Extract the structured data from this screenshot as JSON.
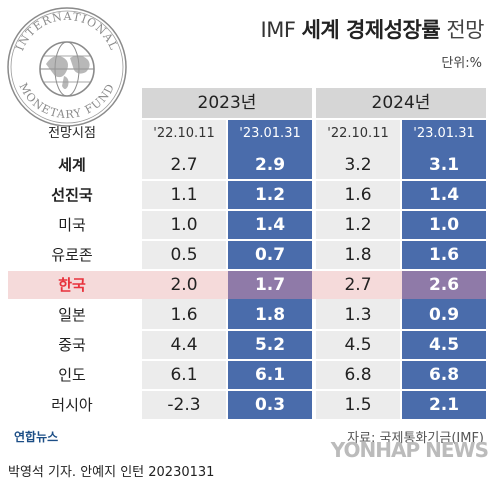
{
  "header": {
    "title_prefix": "IMF",
    "title_main": "세계 경제성장률",
    "title_suffix": "전망",
    "unit": "단위:%"
  },
  "seal": {
    "top_text": "INTERNATIONAL",
    "bottom_text": "MONETARY FUND"
  },
  "table": {
    "label_header": "전망시점",
    "years": [
      "2023년",
      "2024년"
    ],
    "dates": [
      "'22.10.11",
      "'23.01.31",
      "'22.10.11",
      "'23.01.31"
    ]
  },
  "chart_data": {
    "type": "table",
    "title": "IMF 세계 경제성장률 전망",
    "unit": "단위:%",
    "columns": [
      {
        "year": "2023년",
        "date": "'22.10.11"
      },
      {
        "year": "2023년",
        "date": "'23.01.31"
      },
      {
        "year": "2024년",
        "date": "'22.10.11"
      },
      {
        "year": "2024년",
        "date": "'23.01.31"
      }
    ],
    "rows": [
      {
        "label": "세계",
        "values": [
          "2.7",
          "2.9",
          "3.2",
          "3.1"
        ]
      },
      {
        "label": "선진국",
        "values": [
          "1.1",
          "1.2",
          "1.6",
          "1.4"
        ]
      },
      {
        "label": "미국",
        "values": [
          "1.0",
          "1.4",
          "1.2",
          "1.0"
        ]
      },
      {
        "label": "유로존",
        "values": [
          "0.5",
          "0.7",
          "1.8",
          "1.6"
        ]
      },
      {
        "label": "한국",
        "values": [
          "2.0",
          "1.7",
          "2.7",
          "2.6"
        ]
      },
      {
        "label": "일본",
        "values": [
          "1.6",
          "1.8",
          "1.3",
          "0.9"
        ]
      },
      {
        "label": "중국",
        "values": [
          "4.4",
          "5.2",
          "4.5",
          "4.5"
        ]
      },
      {
        "label": "인도",
        "values": [
          "6.1",
          "6.1",
          "6.8",
          "6.8"
        ]
      },
      {
        "label": "러시아",
        "values": [
          "-2.3",
          "0.3",
          "1.5",
          "2.1"
        ]
      }
    ],
    "highlight_row": "한국"
  },
  "footer": {
    "source": "자료: 국제통화기금(IMF)",
    "logo": "연합뉴스",
    "watermark": "YONHAP NEWS",
    "credit": "박영석 기자. 안예지 인턴  20230131"
  },
  "colors": {
    "blue_column": "#4a6cab",
    "korea_blue": "#8f7aa8",
    "korea_row": "#f5dada",
    "grey_column": "#ececec",
    "year_header": "#d6d6d6",
    "korea_label": "#e8323c"
  }
}
